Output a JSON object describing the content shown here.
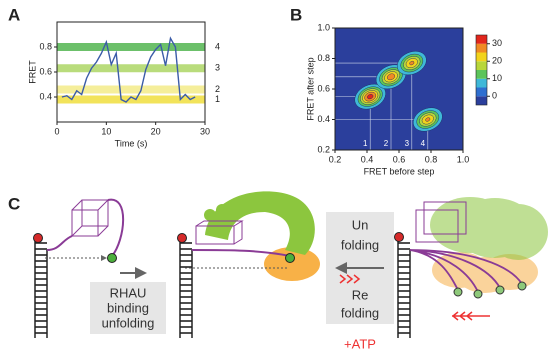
{
  "chart_data": [
    {
      "type": "line",
      "panel": "A",
      "ylabel": "FRET",
      "xlabel": "Time (s)",
      "xlim": [
        0,
        30
      ],
      "xticks": [
        0,
        10,
        20,
        30
      ],
      "ylim": [
        0.2,
        1.0
      ],
      "yticks": [
        0.4,
        0.6,
        0.8
      ],
      "bands": [
        {
          "label": "1",
          "value": 0.38,
          "color": "#f2e35a"
        },
        {
          "label": "2",
          "value": 0.46,
          "color": "#f5ee9a"
        },
        {
          "label": "3",
          "value": 0.63,
          "color": "#b9dc7c"
        },
        {
          "label": "4",
          "value": 0.8,
          "color": "#6cc06a"
        }
      ],
      "series": [
        {
          "color": "#3b5ca8",
          "x": [
            1,
            2,
            3,
            4,
            5,
            6,
            7,
            8,
            9,
            10,
            11,
            12,
            13,
            14,
            15,
            16,
            17,
            18,
            19,
            20,
            21,
            22,
            23,
            24,
            25,
            26,
            27,
            28
          ],
          "values": [
            0.4,
            0.41,
            0.38,
            0.45,
            0.42,
            0.55,
            0.63,
            0.68,
            0.75,
            0.84,
            0.66,
            0.75,
            0.38,
            0.36,
            0.4,
            0.38,
            0.45,
            0.62,
            0.72,
            0.78,
            0.82,
            0.65,
            0.87,
            0.8,
            0.38,
            0.42,
            0.38,
            0.4
          ]
        }
      ]
    },
    {
      "type": "contour",
      "panel": "B",
      "ylabel": "FRET after step",
      "xlabel": "FRET before step",
      "xlim": [
        0.2,
        1.0
      ],
      "xticks": [
        0.2,
        0.4,
        0.6,
        0.8,
        {
          "value": 1.0,
          "label": "1.0"
        }
      ],
      "ylim": [
        0.2,
        1.0
      ],
      "yticks": [
        0.2,
        0.4,
        0.6,
        0.8,
        {
          "value": 1.0,
          "label": "1.0"
        }
      ],
      "peaks": {
        "labels": [
          "1",
          "2",
          "3",
          "4"
        ],
        "x": [
          0.42,
          0.55,
          0.68,
          0.78
        ],
        "y": [
          0.55,
          0.68,
          0.77,
          0.4
        ],
        "z": [
          32,
          28,
          26,
          26
        ]
      },
      "colorbar": {
        "lim": [
          -5,
          35
        ],
        "ticks": [
          0,
          10,
          20,
          30
        ],
        "colors": [
          "#2b3f9c",
          "#2f6fd0",
          "#3fb8d8",
          "#5cc45a",
          "#b8d63a",
          "#f2d31c",
          "#f08a24",
          "#e2261c"
        ]
      }
    }
  ],
  "diagram": {
    "panel": "C",
    "box1": [
      "RHAU",
      "binding",
      "unfolding"
    ],
    "box2_top": [
      "Un",
      "folding"
    ],
    "box2_bottom": [
      "Re",
      "folding"
    ],
    "atp": "+ATP"
  }
}
